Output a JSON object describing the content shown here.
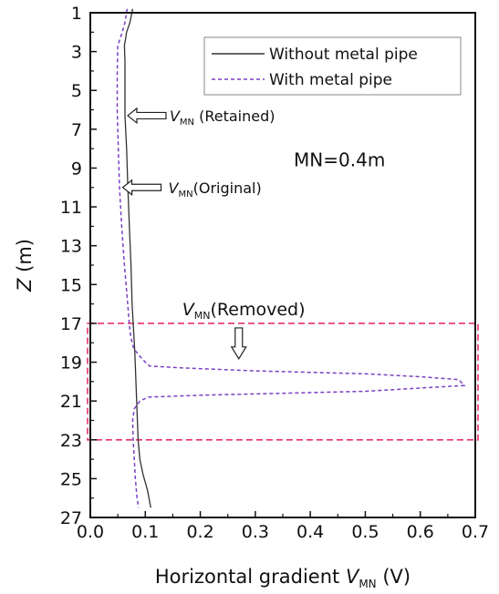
{
  "chart_data": {
    "type": "line",
    "title": "",
    "xlabel": "Horizontal gradient",
    "xlabel_var": "V",
    "xlabel_sub": "MN",
    "xlabel_unit": "(V)",
    "ylabel": "Z",
    "ylabel_unit": "(m)",
    "xlim": [
      0.0,
      0.7
    ],
    "ylim": [
      27,
      1
    ],
    "y_inverted": true,
    "x_ticks": [
      "0.0",
      "0.1",
      "0.2",
      "0.3",
      "0.4",
      "0.5",
      "0.6",
      "0.7"
    ],
    "y_ticks": [
      "1",
      "3",
      "5",
      "7",
      "9",
      "11",
      "13",
      "15",
      "17",
      "19",
      "21",
      "23",
      "25",
      "27"
    ],
    "grid": false,
    "legend_position": "top-right",
    "series": [
      {
        "name": "Without metal pipe",
        "color": "#333333",
        "dash": "solid",
        "points": [
          [
            0.077,
            0.8
          ],
          [
            0.072,
            1.5
          ],
          [
            0.066,
            2.0
          ],
          [
            0.062,
            2.7
          ],
          [
            0.063,
            3.5
          ],
          [
            0.063,
            5.0
          ],
          [
            0.063,
            6.3
          ],
          [
            0.066,
            8.0
          ],
          [
            0.068,
            9.8
          ],
          [
            0.071,
            12.0
          ],
          [
            0.074,
            14.0
          ],
          [
            0.076,
            16.0
          ],
          [
            0.079,
            17.5
          ],
          [
            0.081,
            18.5
          ],
          [
            0.083,
            20.0
          ],
          [
            0.085,
            21.5
          ],
          [
            0.087,
            23.0
          ],
          [
            0.09,
            24.0
          ],
          [
            0.096,
            24.8
          ],
          [
            0.104,
            25.6
          ],
          [
            0.11,
            26.5
          ]
        ]
      },
      {
        "name": "With metal pipe",
        "color": "#7b3fc0",
        "dash": "dashed",
        "points": [
          [
            0.067,
            0.8
          ],
          [
            0.063,
            1.5
          ],
          [
            0.058,
            2.0
          ],
          [
            0.05,
            2.7
          ],
          [
            0.049,
            4.0
          ],
          [
            0.049,
            6.0
          ],
          [
            0.051,
            8.0
          ],
          [
            0.053,
            10.0
          ],
          [
            0.057,
            12.0
          ],
          [
            0.062,
            14.0
          ],
          [
            0.068,
            16.0
          ],
          [
            0.072,
            17.4
          ],
          [
            0.076,
            18.0
          ],
          [
            0.079,
            18.3
          ],
          [
            0.09,
            18.7
          ],
          [
            0.1,
            19.0
          ],
          [
            0.108,
            19.2
          ],
          [
            0.17,
            19.3
          ],
          [
            0.3,
            19.45
          ],
          [
            0.5,
            19.6
          ],
          [
            0.6,
            19.75
          ],
          [
            0.67,
            19.9
          ],
          [
            0.68,
            20.2
          ],
          [
            0.5,
            20.5
          ],
          [
            0.2,
            20.7
          ],
          [
            0.105,
            20.8
          ],
          [
            0.09,
            21.0
          ],
          [
            0.08,
            21.4
          ],
          [
            0.077,
            22.0
          ],
          [
            0.078,
            23.0
          ],
          [
            0.08,
            24.0
          ],
          [
            0.082,
            25.0
          ],
          [
            0.085,
            26.0
          ],
          [
            0.088,
            26.5
          ]
        ]
      }
    ],
    "annotations": {
      "retained": {
        "var": "V",
        "sub": "MN",
        "text": " (Retained)",
        "x": 0.063,
        "y": 6.3
      },
      "original": {
        "var": "V",
        "sub": "MN",
        "text": "(Original)",
        "x": 0.054,
        "y": 10.0
      },
      "removed": {
        "var": "V",
        "sub": "MN",
        "text": "(Removed)",
        "x": 0.27,
        "y": 17.0,
        "arrow_to_y": 19.2
      },
      "mn_label": {
        "text": "MN=0.4m",
        "x": 0.37,
        "y": 8.9
      }
    },
    "highlight_box": {
      "x": [
        -0.005,
        0.705
      ],
      "y": [
        17,
        23
      ],
      "color": "#e8306a"
    }
  }
}
